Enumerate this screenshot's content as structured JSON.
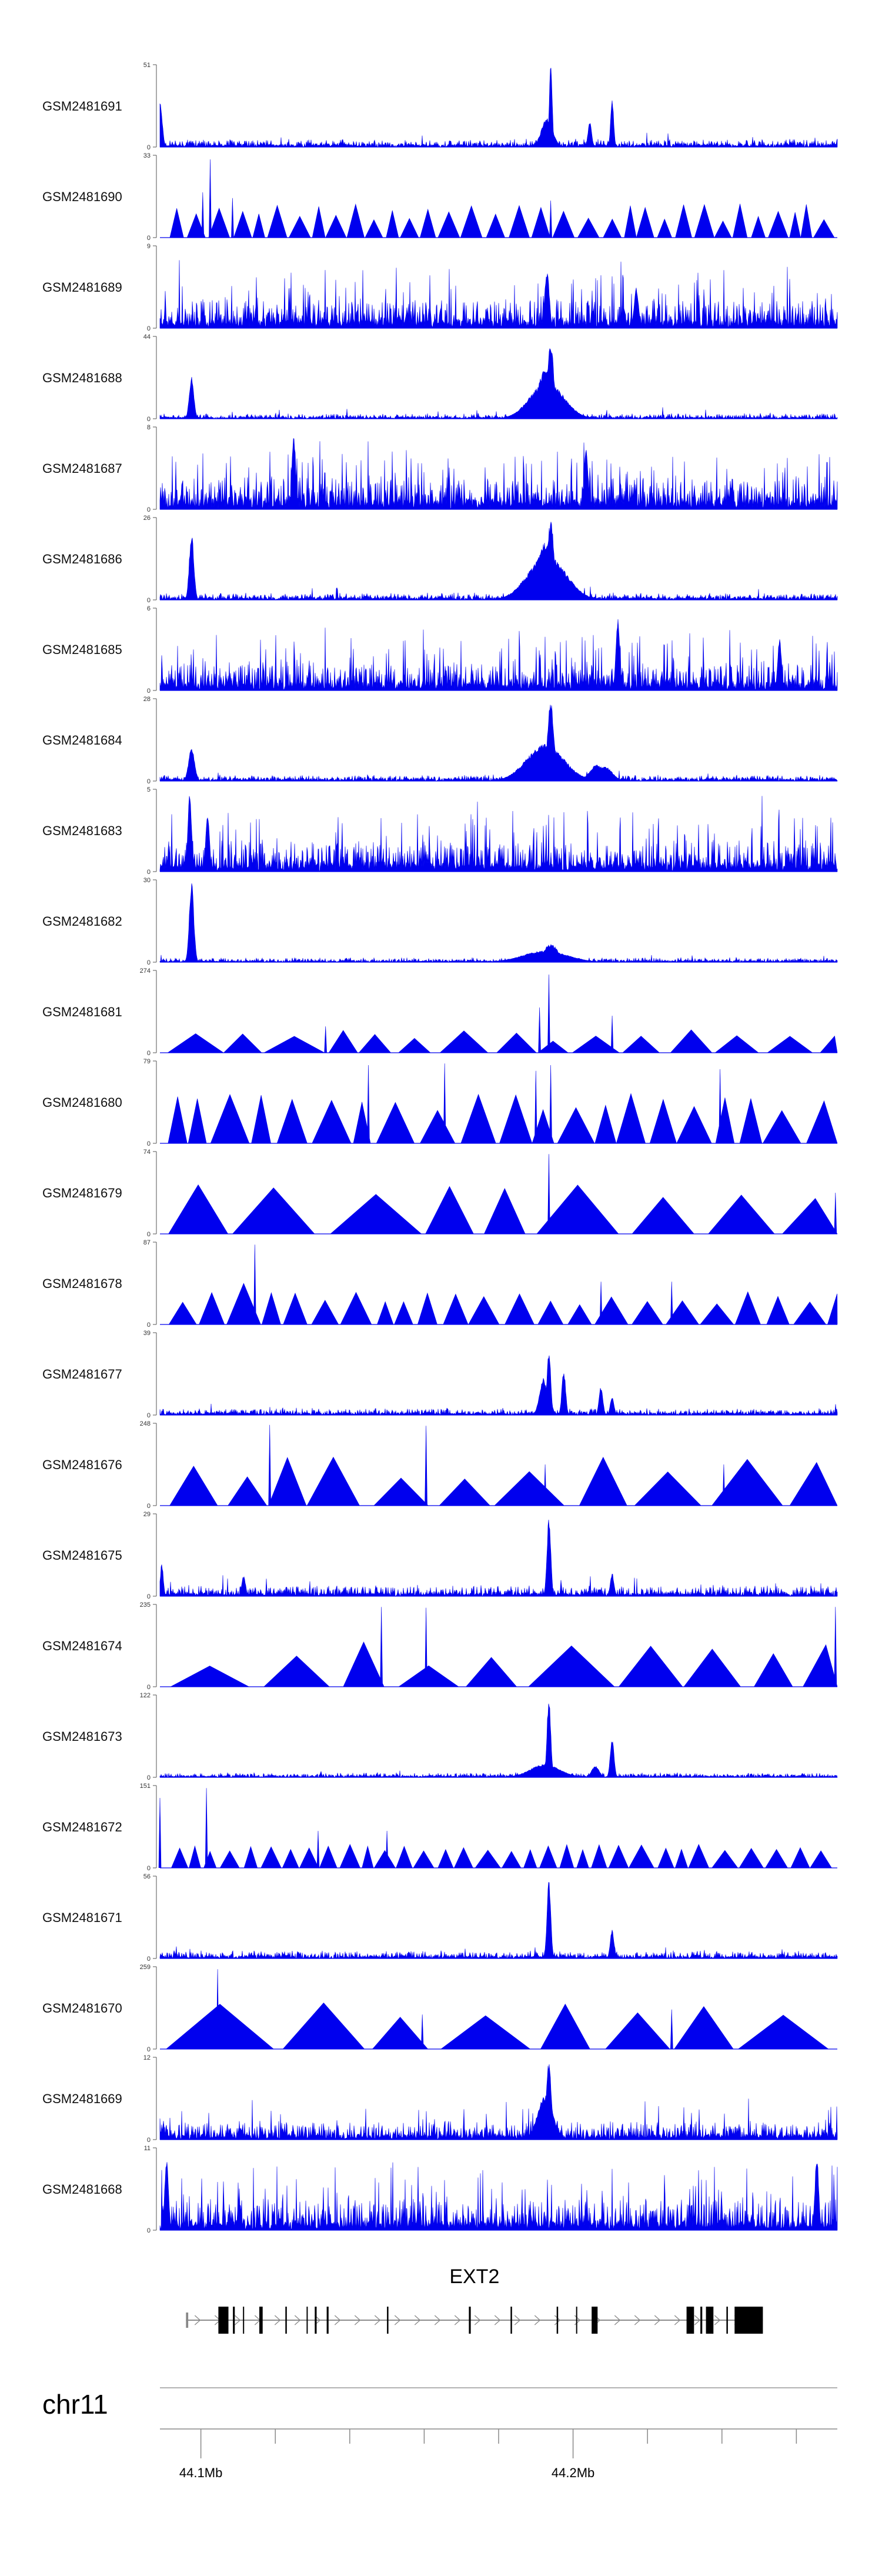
{
  "chart_data": {
    "type": "area",
    "genome": {
      "chromosome": "chr11",
      "x_range_mb": [
        44.089,
        44.271
      ],
      "major_ticks": [
        {
          "value": 44.1,
          "label": "44.1Mb"
        },
        {
          "value": 44.2,
          "label": "44.2Mb"
        }
      ],
      "minor_ticks": [
        44.12,
        44.14,
        44.16,
        44.18,
        44.22,
        44.24,
        44.26
      ]
    },
    "gene": {
      "name": "EXT2",
      "start_mb": 44.096,
      "end_mb": 44.251,
      "exons": [
        {
          "start": 44.096,
          "end": 44.0966,
          "thick": false
        },
        {
          "start": 44.1047,
          "end": 44.1074,
          "thick": true
        },
        {
          "start": 44.1086,
          "end": 44.1091,
          "thick": true
        },
        {
          "start": 44.1113,
          "end": 44.1116,
          "thick": true
        },
        {
          "start": 44.1157,
          "end": 44.1166,
          "thick": true
        },
        {
          "start": 44.1227,
          "end": 44.1231,
          "thick": true
        },
        {
          "start": 44.1284,
          "end": 44.1287,
          "thick": true
        },
        {
          "start": 44.1306,
          "end": 44.1311,
          "thick": true
        },
        {
          "start": 44.1338,
          "end": 44.1343,
          "thick": true
        },
        {
          "start": 44.15,
          "end": 44.1504,
          "thick": true
        },
        {
          "start": 44.172,
          "end": 44.1725,
          "thick": true
        },
        {
          "start": 44.1832,
          "end": 44.1836,
          "thick": true
        },
        {
          "start": 44.1956,
          "end": 44.196,
          "thick": true
        },
        {
          "start": 44.2008,
          "end": 44.2011,
          "thick": true
        },
        {
          "start": 44.205,
          "end": 44.2066,
          "thick": true
        },
        {
          "start": 44.2305,
          "end": 44.2325,
          "thick": true
        },
        {
          "start": 44.2342,
          "end": 44.2347,
          "thick": true
        },
        {
          "start": 44.2357,
          "end": 44.2377,
          "thick": true
        },
        {
          "start": 44.2412,
          "end": 44.2416,
          "thick": true
        },
        {
          "start": 44.2434,
          "end": 44.251,
          "thick": true
        }
      ]
    },
    "track_color": "#0000ee",
    "y_axis_min_label": "0",
    "tracks": [
      {
        "name": "GSM2481691",
        "ymax": 51,
        "style": "dense",
        "base": 0.03,
        "noise": 0.07,
        "spike_p": 0.01,
        "peaks": [
          [
            44.089,
            0.55,
            0.0006
          ],
          [
            44.194,
            0.98,
            0.0004
          ],
          [
            44.193,
            0.35,
            0.0015
          ],
          [
            44.2045,
            0.3,
            0.0005
          ],
          [
            44.2105,
            0.6,
            0.0004
          ]
        ]
      },
      {
        "name": "GSM2481690",
        "ymax": 33,
        "style": "sparse",
        "spacing": 3.6,
        "h": 0.3,
        "hvar": 0.12,
        "peaks": [
          [
            44.1005,
            0.55,
            0.0004
          ],
          [
            44.1025,
            0.95,
            0.0004
          ],
          [
            44.1085,
            0.48,
            0.0004
          ],
          [
            44.194,
            0.45,
            0.0004
          ]
        ]
      },
      {
        "name": "GSM2481689",
        "ymax": 9,
        "style": "dense",
        "base": 0.1,
        "noise": 0.28,
        "spike_p": 0.09,
        "peaks": [
          [
            44.193,
            0.72,
            0.0006
          ],
          [
            44.217,
            0.5,
            0.0006
          ]
        ]
      },
      {
        "name": "GSM2481688",
        "ymax": 44,
        "style": "dense",
        "base": 0.02,
        "noise": 0.05,
        "spike_p": 0.01,
        "peaks": [
          [
            44.0975,
            0.52,
            0.0006
          ],
          [
            44.193,
            0.45,
            0.0045
          ],
          [
            44.194,
            0.95,
            0.0008
          ],
          [
            44.1925,
            0.6,
            0.002
          ]
        ]
      },
      {
        "name": "GSM2481687",
        "ymax": 8,
        "style": "dense",
        "base": 0.12,
        "noise": 0.3,
        "spike_p": 0.1,
        "peaks": [
          [
            44.125,
            0.9,
            0.0005
          ],
          [
            44.2035,
            0.8,
            0.0005
          ]
        ]
      },
      {
        "name": "GSM2481686",
        "ymax": 26,
        "style": "dense",
        "base": 0.03,
        "noise": 0.06,
        "spike_p": 0.015,
        "peaks": [
          [
            44.0975,
            0.82,
            0.0006
          ],
          [
            44.193,
            0.55,
            0.005
          ],
          [
            44.194,
            0.97,
            0.0009
          ],
          [
            44.1925,
            0.7,
            0.0025
          ]
        ]
      },
      {
        "name": "GSM2481685",
        "ymax": 6,
        "style": "dense",
        "base": 0.1,
        "noise": 0.28,
        "spike_p": 0.1,
        "peaks": [
          [
            44.212,
            0.9,
            0.0005
          ],
          [
            44.2555,
            0.65,
            0.0005
          ]
        ]
      },
      {
        "name": "GSM2481684",
        "ymax": 28,
        "style": "dense",
        "base": 0.03,
        "noise": 0.05,
        "spike_p": 0.012,
        "peaks": [
          [
            44.0975,
            0.4,
            0.0008
          ],
          [
            44.1925,
            0.45,
            0.005
          ],
          [
            44.194,
            0.95,
            0.0009
          ],
          [
            44.2065,
            0.2,
            0.002
          ],
          [
            44.2085,
            0.18,
            0.002
          ]
        ]
      },
      {
        "name": "GSM2481683",
        "ymax": 5,
        "style": "dense",
        "base": 0.1,
        "noise": 0.3,
        "spike_p": 0.09,
        "peaks": [
          [
            44.097,
            0.95,
            0.0005
          ],
          [
            44.1018,
            0.75,
            0.0005
          ]
        ]
      },
      {
        "name": "GSM2481682",
        "ymax": 30,
        "style": "dense",
        "base": 0.02,
        "noise": 0.04,
        "spike_p": 0.008,
        "peaks": [
          [
            44.0975,
            0.98,
            0.0006
          ],
          [
            44.1925,
            0.14,
            0.006
          ],
          [
            44.194,
            0.22,
            0.002
          ]
        ]
      },
      {
        "name": "GSM2481681",
        "ymax": 274,
        "style": "sparse",
        "spacing": 9.5,
        "h": 0.22,
        "hvar": 0.08,
        "peaks": [
          [
            44.1335,
            0.32,
            0.0004
          ],
          [
            44.1935,
            0.95,
            0.0004
          ],
          [
            44.191,
            0.55,
            0.0003
          ],
          [
            44.2105,
            0.45,
            0.0004
          ]
        ]
      },
      {
        "name": "GSM2481680",
        "ymax": 79,
        "style": "sparse",
        "spacing": 6.0,
        "h": 0.5,
        "hvar": 0.12,
        "peaks": [
          [
            44.1655,
            0.97,
            0.0004
          ],
          [
            44.145,
            0.95,
            0.0004
          ],
          [
            44.194,
            0.95,
            0.0004
          ],
          [
            44.19,
            0.88,
            0.0004
          ],
          [
            44.2395,
            0.9,
            0.0004
          ]
        ]
      },
      {
        "name": "GSM2481679",
        "ymax": 74,
        "style": "sparse",
        "spacing": 14.0,
        "h": 0.5,
        "hvar": 0.1,
        "peaks": [
          [
            44.1935,
            0.97,
            0.0004
          ],
          [
            44.2705,
            0.5,
            0.0004
          ]
        ]
      },
      {
        "name": "GSM2481678",
        "ymax": 87,
        "style": "sparse",
        "spacing": 5.2,
        "h": 0.32,
        "hvar": 0.08,
        "peaks": [
          [
            44.1145,
            0.97,
            0.0004
          ],
          [
            44.1115,
            0.5,
            0.0004
          ],
          [
            44.2075,
            0.52,
            0.0004
          ],
          [
            44.2265,
            0.52,
            0.0004
          ],
          [
            44.1335,
            0.28,
            0.0004
          ]
        ]
      },
      {
        "name": "GSM2481677",
        "ymax": 39,
        "style": "dense",
        "base": 0.03,
        "noise": 0.06,
        "spike_p": 0.012,
        "peaks": [
          [
            44.1935,
            0.8,
            0.0005
          ],
          [
            44.192,
            0.45,
            0.001
          ],
          [
            44.1975,
            0.55,
            0.0005
          ],
          [
            44.2075,
            0.35,
            0.0005
          ],
          [
            44.2105,
            0.22,
            0.0005
          ]
        ]
      },
      {
        "name": "GSM2481676",
        "ymax": 248,
        "style": "sparse",
        "spacing": 13.0,
        "h": 0.45,
        "hvar": 0.15,
        "peaks": [
          [
            44.1185,
            0.98,
            0.0004
          ],
          [
            44.1605,
            0.97,
            0.0004
          ],
          [
            44.1925,
            0.5,
            0.0004
          ],
          [
            44.2405,
            0.5,
            0.0004
          ]
        ]
      },
      {
        "name": "GSM2481675",
        "ymax": 29,
        "style": "dense",
        "base": 0.04,
        "noise": 0.1,
        "spike_p": 0.02,
        "peaks": [
          [
            44.1935,
            0.97,
            0.0005
          ],
          [
            44.1115,
            0.25,
            0.0005
          ],
          [
            44.2105,
            0.28,
            0.0005
          ],
          [
            44.0895,
            0.4,
            0.0004
          ]
        ]
      },
      {
        "name": "GSM2481674",
        "ymax": 235,
        "style": "sparse",
        "spacing": 13.5,
        "h": 0.4,
        "hvar": 0.15,
        "peaks": [
          [
            44.1485,
            0.97,
            0.0004
          ],
          [
            44.1605,
            0.96,
            0.0004
          ],
          [
            44.2705,
            0.97,
            0.0004
          ]
        ]
      },
      {
        "name": "GSM2481673",
        "ymax": 122,
        "style": "dense",
        "base": 0.02,
        "noise": 0.04,
        "spike_p": 0.006,
        "peaks": [
          [
            44.1935,
            0.97,
            0.0005
          ],
          [
            44.1925,
            0.16,
            0.004
          ],
          [
            44.2105,
            0.48,
            0.0005
          ],
          [
            44.206,
            0.14,
            0.001
          ]
        ]
      },
      {
        "name": "GSM2481672",
        "ymax": 151,
        "style": "sparse",
        "spacing": 4.0,
        "h": 0.25,
        "hvar": 0.05,
        "peaks": [
          [
            44.089,
            0.85,
            0.0004
          ],
          [
            44.1015,
            0.97,
            0.0004
          ],
          [
            44.15,
            0.45,
            0.0004
          ],
          [
            44.1315,
            0.45,
            0.0004
          ]
        ]
      },
      {
        "name": "GSM2481671",
        "ymax": 56,
        "style": "dense",
        "base": 0.03,
        "noise": 0.07,
        "spike_p": 0.012,
        "peaks": [
          [
            44.1935,
            0.96,
            0.0005
          ],
          [
            44.2105,
            0.35,
            0.0005
          ]
        ]
      },
      {
        "name": "GSM2481670",
        "ymax": 259,
        "style": "sparse",
        "spacing": 17.0,
        "h": 0.48,
        "hvar": 0.1,
        "peaks": [
          [
            44.1045,
            0.97,
            0.0004
          ],
          [
            44.2265,
            0.48,
            0.0004
          ],
          [
            44.1595,
            0.42,
            0.0004
          ]
        ]
      },
      {
        "name": "GSM2481669",
        "ymax": 12,
        "style": "dense",
        "base": 0.06,
        "noise": 0.18,
        "spike_p": 0.05,
        "peaks": [
          [
            44.1935,
            0.95,
            0.0007
          ],
          [
            44.1925,
            0.55,
            0.002
          ]
        ]
      },
      {
        "name": "GSM2481668",
        "ymax": 11,
        "style": "dense",
        "base": 0.1,
        "noise": 0.3,
        "spike_p": 0.1,
        "peaks": [
          [
            44.0908,
            0.9,
            0.0005
          ],
          [
            44.2655,
            0.92,
            0.0005
          ]
        ]
      }
    ]
  }
}
